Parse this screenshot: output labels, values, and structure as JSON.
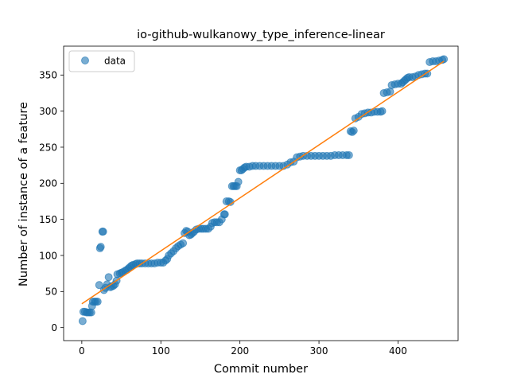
{
  "chart_data": {
    "type": "scatter",
    "title": "io-github-wulkanowy_type_inference-linear",
    "xlabel": "Commit number",
    "ylabel": "Number of instance of a feature",
    "xlim": [
      -23,
      476
    ],
    "ylim": [
      -18,
      390
    ],
    "xticks": [
      0,
      100,
      200,
      300,
      400
    ],
    "yticks": [
      0,
      50,
      100,
      150,
      200,
      250,
      300,
      350
    ],
    "legend": {
      "position": "top-left",
      "entries": [
        {
          "label": "data",
          "marker": "circle"
        }
      ]
    },
    "colors": {
      "points": "#1f77b4",
      "fit": "#ff7f0e"
    },
    "series": [
      {
        "name": "data",
        "kind": "points",
        "points": [
          [
            1,
            9
          ],
          [
            2,
            22
          ],
          [
            4,
            22
          ],
          [
            6,
            21
          ],
          [
            8,
            21
          ],
          [
            10,
            21
          ],
          [
            12,
            21
          ],
          [
            13,
            30
          ],
          [
            14,
            36
          ],
          [
            16,
            36
          ],
          [
            18,
            36
          ],
          [
            20,
            36
          ],
          [
            22,
            59
          ],
          [
            23,
            110
          ],
          [
            24,
            112
          ],
          [
            26,
            133
          ],
          [
            27,
            133
          ],
          [
            28,
            52
          ],
          [
            30,
            55
          ],
          [
            32,
            60
          ],
          [
            34,
            70
          ],
          [
            36,
            56
          ],
          [
            38,
            57
          ],
          [
            40,
            58
          ],
          [
            42,
            60
          ],
          [
            44,
            65
          ],
          [
            45,
            74
          ],
          [
            48,
            75
          ],
          [
            50,
            76
          ],
          [
            52,
            77
          ],
          [
            55,
            79
          ],
          [
            57,
            80
          ],
          [
            59,
            82
          ],
          [
            61,
            84
          ],
          [
            63,
            86
          ],
          [
            65,
            87
          ],
          [
            68,
            88
          ],
          [
            70,
            89
          ],
          [
            73,
            89
          ],
          [
            76,
            89
          ],
          [
            80,
            89
          ],
          [
            84,
            89
          ],
          [
            88,
            89
          ],
          [
            92,
            89
          ],
          [
            96,
            90
          ],
          [
            100,
            90
          ],
          [
            103,
            90
          ],
          [
            106,
            93
          ],
          [
            108,
            95
          ],
          [
            110,
            100
          ],
          [
            113,
            103
          ],
          [
            116,
            106
          ],
          [
            119,
            110
          ],
          [
            122,
            113
          ],
          [
            125,
            115
          ],
          [
            128,
            117
          ],
          [
            130,
            131
          ],
          [
            132,
            134
          ],
          [
            134,
            133
          ],
          [
            136,
            128
          ],
          [
            138,
            129
          ],
          [
            140,
            131
          ],
          [
            142,
            133
          ],
          [
            145,
            136
          ],
          [
            148,
            137
          ],
          [
            151,
            137
          ],
          [
            154,
            137
          ],
          [
            157,
            137
          ],
          [
            160,
            137
          ],
          [
            163,
            140
          ],
          [
            165,
            145
          ],
          [
            168,
            146
          ],
          [
            171,
            146
          ],
          [
            174,
            146
          ],
          [
            177,
            150
          ],
          [
            180,
            157
          ],
          [
            181,
            157
          ],
          [
            183,
            175
          ],
          [
            186,
            175
          ],
          [
            188,
            174
          ],
          [
            190,
            196
          ],
          [
            192,
            196
          ],
          [
            194,
            196
          ],
          [
            196,
            196
          ],
          [
            198,
            202
          ],
          [
            200,
            218
          ],
          [
            202,
            218
          ],
          [
            204,
            220
          ],
          [
            206,
            222
          ],
          [
            208,
            223
          ],
          [
            212,
            223
          ],
          [
            216,
            224
          ],
          [
            220,
            224
          ],
          [
            225,
            224
          ],
          [
            230,
            224
          ],
          [
            235,
            224
          ],
          [
            240,
            224
          ],
          [
            245,
            224
          ],
          [
            250,
            224
          ],
          [
            255,
            224
          ],
          [
            260,
            226
          ],
          [
            264,
            229
          ],
          [
            268,
            230
          ],
          [
            272,
            236
          ],
          [
            276,
            237
          ],
          [
            280,
            238
          ],
          [
            285,
            238
          ],
          [
            290,
            238
          ],
          [
            295,
            238
          ],
          [
            300,
            238
          ],
          [
            305,
            238
          ],
          [
            310,
            238
          ],
          [
            315,
            238
          ],
          [
            320,
            239
          ],
          [
            325,
            239
          ],
          [
            330,
            239
          ],
          [
            335,
            239
          ],
          [
            338,
            239
          ],
          [
            340,
            272
          ],
          [
            342,
            271
          ],
          [
            344,
            273
          ],
          [
            346,
            290
          ],
          [
            350,
            292
          ],
          [
            354,
            296
          ],
          [
            358,
            297
          ],
          [
            362,
            298
          ],
          [
            366,
            298
          ],
          [
            370,
            299
          ],
          [
            374,
            299
          ],
          [
            378,
            299
          ],
          [
            380,
            300
          ],
          [
            382,
            325
          ],
          [
            386,
            326
          ],
          [
            390,
            327
          ],
          [
            392,
            336
          ],
          [
            396,
            337
          ],
          [
            400,
            338
          ],
          [
            404,
            338
          ],
          [
            406,
            340
          ],
          [
            408,
            342
          ],
          [
            410,
            344
          ],
          [
            412,
            346
          ],
          [
            414,
            347
          ],
          [
            418,
            347
          ],
          [
            422,
            348
          ],
          [
            426,
            350
          ],
          [
            430,
            351
          ],
          [
            434,
            352
          ],
          [
            437,
            352
          ],
          [
            440,
            368
          ],
          [
            444,
            369
          ],
          [
            448,
            369
          ],
          [
            452,
            370
          ],
          [
            456,
            371
          ],
          [
            458,
            372
          ]
        ]
      },
      {
        "kind": "line",
        "points": [
          [
            0,
            33
          ],
          [
            458,
            369
          ]
        ]
      }
    ]
  }
}
